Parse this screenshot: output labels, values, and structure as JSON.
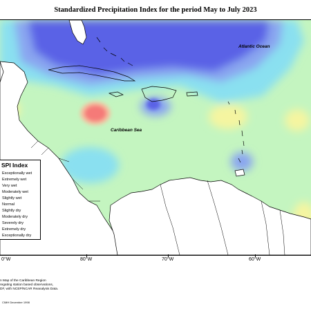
{
  "title": "Standardized Precipitation Index for the period May to July 2023",
  "map": {
    "ocean_labels": [
      "Atlantic Ocean",
      "Caribbean Sea"
    ],
    "longitude_labels": [
      "80°W",
      "70°W",
      "60°W"
    ],
    "left_edge_label": "0°W",
    "colors": {
      "very_wet": "#5a62e6",
      "moderately_wet": "#8aa6f0",
      "slightly_wet": "#8ae0f0",
      "normal": "#c4f5c0",
      "slightly_dry": "#f5f5a0",
      "severely_dry": "#f57a78",
      "land": "#ffffff"
    }
  },
  "legend": {
    "title": "SPI Index",
    "items": [
      "Exceptionally wet",
      "Extremely wet",
      "Very wet",
      "Moderately wet",
      "Slightly wet",
      "Normal",
      "Slightly dry",
      "Moderately dry",
      "Severely dry",
      "Extremely dry",
      "Exceptionally dry"
    ]
  },
  "notes": [
    "n Map of the Caribbean Region",
    "regating station based observations,",
    "DF, with NCEP/NCAR Reanalysis Data."
  ],
  "credit": "CIMH December 1998"
}
